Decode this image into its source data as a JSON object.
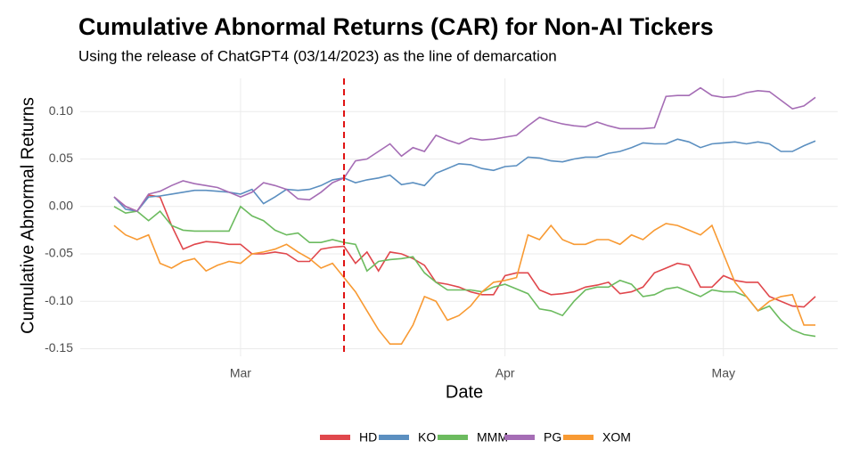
{
  "chart_data": {
    "type": "line",
    "title": "Cumulative Abnormal Returns (CAR) for Non-AI Tickers",
    "subtitle": "Using the release of ChatGPT4 (03/14/2023) as the line of demarcation",
    "xlabel": "Date",
    "ylabel": "Cumulative Abnormal Returns",
    "categories": [
      null,
      null,
      null,
      null,
      null,
      null,
      null,
      null,
      null,
      null,
      null,
      "Mar",
      null,
      null,
      null,
      null,
      null,
      null,
      null,
      null,
      null,
      null,
      null,
      null,
      null,
      null,
      null,
      null,
      null,
      null,
      null,
      null,
      null,
      null,
      "Apr",
      null,
      null,
      null,
      null,
      null,
      null,
      null,
      null,
      null,
      null,
      null,
      null,
      null,
      null,
      null,
      null,
      null,
      null,
      "May",
      null,
      null,
      null,
      null,
      null,
      null,
      null,
      null
    ],
    "series": [
      {
        "name": "HD",
        "color": "#e0474c",
        "values": [
          0.01,
          0.0,
          -0.005,
          0.012,
          0.01,
          -0.02,
          -0.045,
          -0.04,
          -0.037,
          -0.038,
          -0.04,
          -0.04,
          -0.05,
          -0.05,
          -0.048,
          -0.05,
          -0.058,
          -0.058,
          -0.045,
          -0.043,
          -0.042,
          -0.06,
          -0.048,
          -0.068,
          -0.048,
          -0.05,
          -0.055,
          -0.062,
          -0.08,
          -0.082,
          -0.085,
          -0.09,
          -0.093,
          -0.093,
          -0.073,
          -0.07,
          -0.07,
          -0.088,
          -0.093,
          -0.092,
          -0.09,
          -0.085,
          -0.083,
          -0.08,
          -0.092,
          -0.09,
          -0.085,
          -0.07,
          -0.065,
          -0.06,
          -0.062,
          -0.085,
          -0.085,
          -0.073,
          -0.078,
          -0.08,
          -0.08,
          -0.095,
          -0.1,
          -0.105,
          -0.106,
          -0.095
        ]
      },
      {
        "name": "KO",
        "color": "#5b8fc0",
        "values": [
          0.01,
          -0.003,
          -0.005,
          0.01,
          0.011,
          0.013,
          0.015,
          0.017,
          0.017,
          0.016,
          0.015,
          0.013,
          0.018,
          0.003,
          0.01,
          0.018,
          0.017,
          0.018,
          0.022,
          0.028,
          0.03,
          0.025,
          0.028,
          0.03,
          0.033,
          0.023,
          0.025,
          0.022,
          0.035,
          0.04,
          0.045,
          0.044,
          0.04,
          0.038,
          0.042,
          0.043,
          0.052,
          0.051,
          0.048,
          0.047,
          0.05,
          0.052,
          0.052,
          0.056,
          0.058,
          0.062,
          0.067,
          0.066,
          0.066,
          0.071,
          0.068,
          0.062,
          0.066,
          0.067,
          0.068,
          0.066,
          0.068,
          0.066,
          0.058,
          0.058,
          0.064,
          0.069
        ]
      },
      {
        "name": "MMM",
        "color": "#6cbb5f",
        "values": [
          0.0,
          -0.007,
          -0.005,
          -0.015,
          -0.005,
          -0.02,
          -0.025,
          -0.026,
          -0.026,
          -0.026,
          -0.026,
          0.0,
          -0.01,
          -0.015,
          -0.025,
          -0.03,
          -0.028,
          -0.038,
          -0.038,
          -0.035,
          -0.038,
          -0.04,
          -0.068,
          -0.058,
          -0.056,
          -0.055,
          -0.053,
          -0.07,
          -0.08,
          -0.088,
          -0.088,
          -0.088,
          -0.09,
          -0.085,
          -0.082,
          -0.087,
          -0.092,
          -0.108,
          -0.11,
          -0.115,
          -0.1,
          -0.088,
          -0.085,
          -0.085,
          -0.078,
          -0.082,
          -0.095,
          -0.093,
          -0.087,
          -0.085,
          -0.09,
          -0.095,
          -0.088,
          -0.09,
          -0.09,
          -0.095,
          -0.11,
          -0.105,
          -0.12,
          -0.13,
          -0.135,
          -0.137
        ]
      },
      {
        "name": "PG",
        "color": "#a56db5",
        "values": [
          0.01,
          0.0,
          -0.005,
          0.013,
          0.016,
          0.022,
          0.027,
          0.024,
          0.022,
          0.02,
          0.015,
          0.01,
          0.015,
          0.025,
          0.022,
          0.018,
          0.008,
          0.007,
          0.015,
          0.025,
          0.03,
          0.048,
          0.05,
          0.058,
          0.066,
          0.053,
          0.062,
          0.058,
          0.075,
          0.07,
          0.066,
          0.072,
          0.07,
          0.071,
          0.073,
          0.075,
          0.085,
          0.094,
          0.09,
          0.087,
          0.085,
          0.084,
          0.089,
          0.085,
          0.082,
          0.082,
          0.082,
          0.083,
          0.116,
          0.117,
          0.117,
          0.125,
          0.117,
          0.115,
          0.116,
          0.12,
          0.122,
          0.121,
          0.112,
          0.103,
          0.106,
          0.115
        ]
      },
      {
        "name": "XOM",
        "color": "#f89a33",
        "values": [
          -0.02,
          -0.03,
          -0.035,
          -0.03,
          -0.06,
          -0.065,
          -0.058,
          -0.055,
          -0.068,
          -0.062,
          -0.058,
          -0.06,
          -0.05,
          -0.048,
          -0.045,
          -0.04,
          -0.048,
          -0.055,
          -0.065,
          -0.06,
          -0.075,
          -0.09,
          -0.11,
          -0.13,
          -0.145,
          -0.145,
          -0.125,
          -0.095,
          -0.1,
          -0.12,
          -0.115,
          -0.105,
          -0.09,
          -0.08,
          -0.078,
          -0.075,
          -0.03,
          -0.035,
          -0.02,
          -0.035,
          -0.04,
          -0.04,
          -0.035,
          -0.035,
          -0.04,
          -0.03,
          -0.035,
          -0.025,
          -0.018,
          -0.02,
          -0.025,
          -0.03,
          -0.02,
          -0.05,
          -0.08,
          -0.095,
          -0.11,
          -0.1,
          -0.095,
          -0.093,
          -0.125,
          -0.125
        ]
      }
    ],
    "vline": {
      "at": 20,
      "color": "#e01010",
      "dashed": true
    },
    "ylim": [
      -0.158,
      0.135
    ],
    "yticks": [
      {
        "value": -0.15,
        "label": "-0.15"
      },
      {
        "value": -0.1,
        "label": "-0.10"
      },
      {
        "value": -0.05,
        "label": "-0.05"
      },
      {
        "value": 0,
        "label": "0.00"
      },
      {
        "value": 0.05,
        "label": "0.05"
      },
      {
        "value": 0.1,
        "label": "0.10"
      }
    ],
    "grid": true,
    "legend_position": "bottom"
  }
}
